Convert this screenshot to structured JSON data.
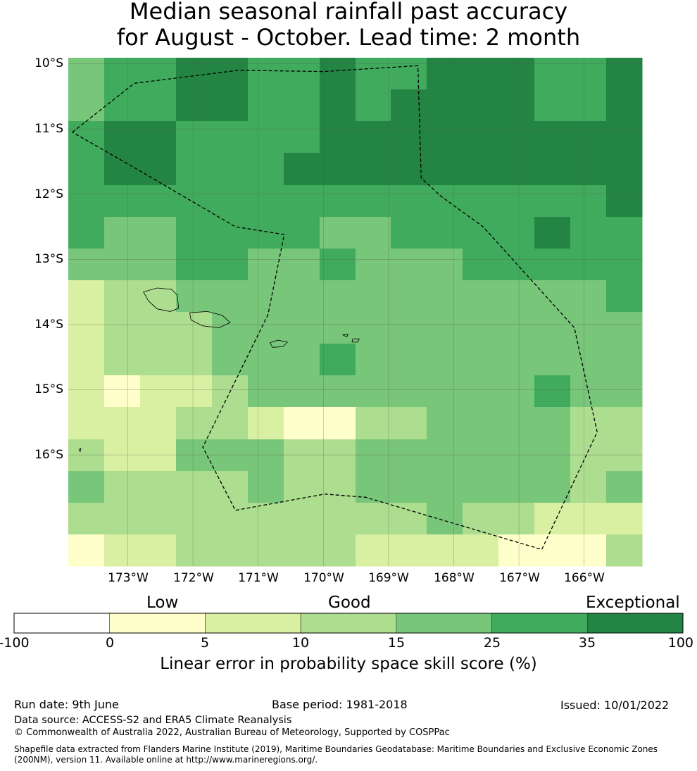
{
  "title": {
    "line1": "Median seasonal rainfall past accuracy",
    "line2": "for August - October. Lead time: 2 month"
  },
  "map": {
    "lat_labels": [
      "10°S",
      "11°S",
      "12°S",
      "13°S",
      "14°S",
      "15°S",
      "16°S"
    ],
    "lon_labels": [
      "173°W",
      "172°W",
      "171°W",
      "170°W",
      "169°W",
      "168°W",
      "167°W",
      "166°W"
    ],
    "grid_rows": [
      [
        4,
        5,
        5,
        6,
        6,
        5,
        5,
        6,
        5,
        5,
        6,
        6,
        6,
        5,
        5,
        6
      ],
      [
        4,
        5,
        5,
        6,
        6,
        5,
        5,
        6,
        5,
        6,
        6,
        6,
        6,
        5,
        5,
        6
      ],
      [
        5,
        6,
        6,
        5,
        5,
        5,
        5,
        6,
        6,
        6,
        6,
        6,
        6,
        6,
        6,
        6
      ],
      [
        5,
        6,
        6,
        5,
        5,
        5,
        6,
        6,
        6,
        6,
        6,
        6,
        6,
        6,
        6,
        6
      ],
      [
        5,
        5,
        5,
        5,
        5,
        5,
        5,
        5,
        5,
        5,
        5,
        5,
        5,
        5,
        5,
        6
      ],
      [
        5,
        4,
        4,
        5,
        5,
        5,
        5,
        4,
        4,
        5,
        5,
        5,
        5,
        6,
        5,
        5
      ],
      [
        4,
        4,
        4,
        5,
        5,
        4,
        4,
        5,
        4,
        4,
        4,
        5,
        5,
        5,
        5,
        5
      ],
      [
        2,
        3,
        3,
        4,
        4,
        4,
        4,
        4,
        4,
        4,
        4,
        4,
        4,
        4,
        4,
        5
      ],
      [
        2,
        3,
        3,
        3,
        4,
        4,
        4,
        4,
        4,
        4,
        4,
        4,
        4,
        4,
        4,
        4
      ],
      [
        2,
        3,
        3,
        3,
        4,
        4,
        4,
        5,
        4,
        4,
        4,
        4,
        4,
        4,
        4,
        4
      ],
      [
        2,
        1,
        2,
        2,
        3,
        4,
        4,
        4,
        4,
        4,
        4,
        4,
        4,
        5,
        4,
        4
      ],
      [
        2,
        2,
        2,
        3,
        3,
        2,
        1,
        1,
        3,
        3,
        4,
        4,
        4,
        4,
        3,
        3
      ],
      [
        3,
        2,
        2,
        4,
        4,
        4,
        3,
        3,
        4,
        4,
        4,
        4,
        4,
        4,
        3,
        3
      ],
      [
        4,
        3,
        3,
        3,
        3,
        4,
        3,
        3,
        4,
        4,
        4,
        4,
        4,
        4,
        3,
        4
      ],
      [
        3,
        3,
        3,
        3,
        3,
        3,
        3,
        3,
        3,
        3,
        4,
        3,
        3,
        2,
        2,
        2
      ],
      [
        1,
        2,
        2,
        3,
        3,
        3,
        3,
        3,
        2,
        2,
        2,
        2,
        1,
        1,
        1,
        3
      ]
    ],
    "eez_boundary": [
      [
        -173.85,
        -11.05
      ],
      [
        -172.9,
        -10.3
      ],
      [
        -171.3,
        -10.1
      ],
      [
        -170.0,
        -10.12
      ],
      [
        -168.55,
        -10.03
      ],
      [
        -168.5,
        -11.75
      ],
      [
        -168.2,
        -12.03
      ],
      [
        -167.55,
        -12.5
      ],
      [
        -166.15,
        -14.05
      ],
      [
        -165.8,
        -15.65
      ],
      [
        -166.65,
        -17.45
      ],
      [
        -169.35,
        -16.65
      ],
      [
        -169.98,
        -16.6
      ],
      [
        -171.35,
        -16.85
      ],
      [
        -171.85,
        -15.88
      ],
      [
        -170.85,
        -13.85
      ],
      [
        -170.6,
        -12.62
      ],
      [
        -171.35,
        -12.5
      ],
      [
        -172.75,
        -11.68
      ]
    ],
    "islands": [
      [
        [
          -172.76,
          -13.5
        ],
        [
          -172.55,
          -13.44
        ],
        [
          -172.33,
          -13.46
        ],
        [
          -172.24,
          -13.55
        ],
        [
          -172.22,
          -13.75
        ],
        [
          -172.35,
          -13.8
        ],
        [
          -172.55,
          -13.76
        ],
        [
          -172.68,
          -13.64
        ]
      ],
      [
        [
          -172.05,
          -13.82
        ],
        [
          -171.78,
          -13.8
        ],
        [
          -171.55,
          -13.86
        ],
        [
          -171.43,
          -13.97
        ],
        [
          -171.6,
          -14.05
        ],
        [
          -171.85,
          -14.02
        ],
        [
          -172.03,
          -13.93
        ]
      ],
      [
        [
          -170.82,
          -14.28
        ],
        [
          -170.7,
          -14.24
        ],
        [
          -170.55,
          -14.27
        ],
        [
          -170.62,
          -14.34
        ],
        [
          -170.78,
          -14.35
        ]
      ],
      [
        [
          -169.7,
          -14.16
        ],
        [
          -169.62,
          -14.15
        ],
        [
          -169.64,
          -14.19
        ]
      ],
      [
        [
          -169.55,
          -14.22
        ],
        [
          -169.45,
          -14.22
        ],
        [
          -169.47,
          -14.27
        ],
        [
          -169.56,
          -14.27
        ]
      ],
      [
        [
          -173.75,
          -15.92
        ],
        [
          -173.72,
          -15.9
        ],
        [
          -173.73,
          -15.95
        ]
      ]
    ]
  },
  "legend": {
    "categories": [
      "Low",
      "Good",
      "Exceptional"
    ],
    "tick_labels": [
      "-100",
      "0",
      "5",
      "10",
      "15",
      "25",
      "35",
      "100"
    ],
    "colors": [
      "#ffffff",
      "#ffffcc",
      "#d9f0a3",
      "#addd8e",
      "#78c679",
      "#41ab5d",
      "#238443"
    ],
    "label": "Linear error in probability space skill score (%)"
  },
  "footer": {
    "run_date": "Run date: 9th June",
    "base_period": "Base period: 1981-2018",
    "issued": "Issued: 10/01/2022",
    "data_source": "Data source: ACCESS-S2 and ERA5 Climate Reanalysis",
    "copyright": "© Commonwealth of Australia 2022, Australian Bureau of Meteorology, Supported by COSPPac",
    "shapefile_line1": "Shapefile data extracted from Flanders Marine Institute (2019), Maritime Boundaries Geodatabase: Maritime Boundaries and Exclusive Economic Zones",
    "shapefile_line2": "(200NM), version 11. Available online at http://www.marineregions.org/."
  }
}
